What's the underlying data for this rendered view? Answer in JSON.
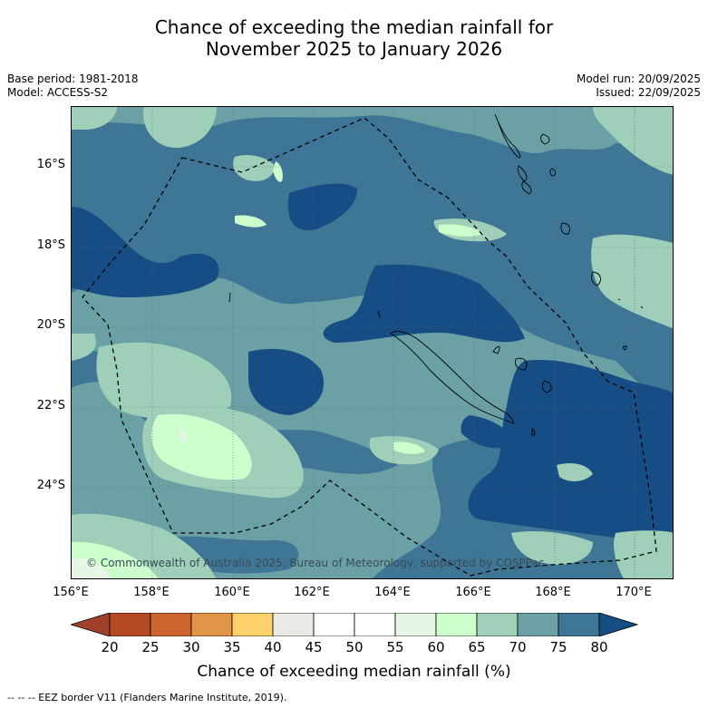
{
  "title": {
    "line1": "Chance of exceeding the median rainfall for",
    "line2": "November 2025 to January 2026"
  },
  "meta": {
    "base_period": "Base period: 1981-2018",
    "model": "Model: ACCESS-S2",
    "model_run": "Model run: 20/09/2025",
    "issued": "Issued: 22/09/2025"
  },
  "map": {
    "copyright": "© Commonwealth of Australia 2025, Bureau of Meteorology, supported by COSPPac",
    "lat_labels": [
      "16°S",
      "18°S",
      "20°S",
      "22°S",
      "24°S"
    ],
    "lon_labels": [
      "156°E",
      "158°E",
      "160°E",
      "162°E",
      "164°E",
      "166°E",
      "168°E",
      "170°E"
    ]
  },
  "colorbar": {
    "label": "Chance of exceeding median rainfall (%)",
    "ticks": [
      "20",
      "25",
      "30",
      "35",
      "40",
      "45",
      "50",
      "55",
      "60",
      "65",
      "70",
      "75",
      "80"
    ],
    "colors": {
      "below_20": "#a0402a",
      "c20_25": "#b34a24",
      "c25_30": "#cc6530",
      "c30_35": "#e29448",
      "c35_40": "#fdd06a",
      "c40_45": "#ebe9e4",
      "c45_50": "#ffffff",
      "c50_55": "#ffffff",
      "c55_60": "#e6f5e6",
      "c60_65": "#ccffcc",
      "c65_70": "#9fcfb8",
      "c70_75": "#6ba1a5",
      "c75_80": "#3f7696",
      "above_80": "#174d85"
    }
  },
  "footer": "--  --  -- EEZ border V11 (Flanders Marine Institute, 2019)."
}
